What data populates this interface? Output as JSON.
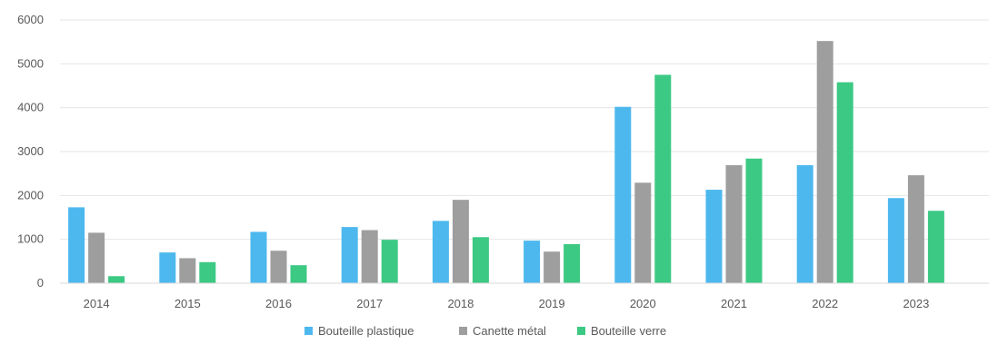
{
  "chart_data": {
    "type": "bar",
    "categories": [
      "2014",
      "2015",
      "2016",
      "2017",
      "2018",
      "2019",
      "2020",
      "2021",
      "2022",
      "2023"
    ],
    "series": [
      {
        "name": "Bouteille plastique",
        "color": "#4DB8EE",
        "values": [
          1730,
          700,
          1170,
          1280,
          1420,
          970,
          4020,
          2130,
          2690,
          1940
        ]
      },
      {
        "name": "Canette métal",
        "color": "#9E9E9E",
        "values": [
          1150,
          570,
          740,
          1210,
          1900,
          720,
          2290,
          2690,
          5520,
          2460
        ]
      },
      {
        "name": "Bouteille verre",
        "color": "#3CC984",
        "values": [
          160,
          480,
          410,
          990,
          1050,
          890,
          4750,
          2840,
          4580,
          1650
        ]
      }
    ],
    "yticks": [
      "0",
      "1000",
      "2000",
      "3000",
      "4000",
      "5000",
      "6000"
    ],
    "ylim": [
      0,
      6000
    ],
    "grid": true,
    "legend_position": "bottom"
  }
}
